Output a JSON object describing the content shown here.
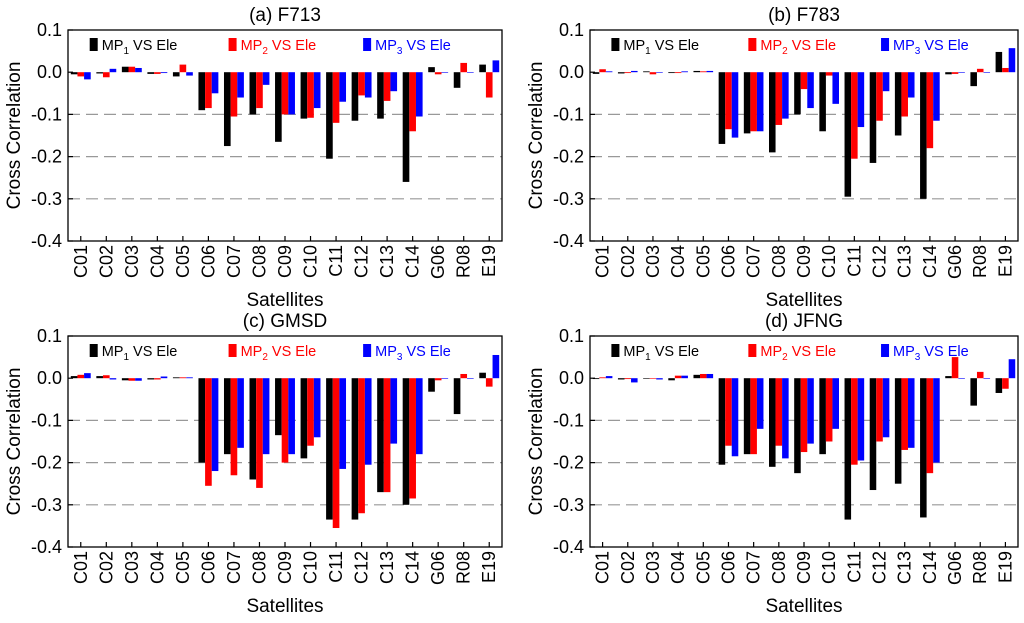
{
  "chart_data": [
    {
      "type": "bar",
      "title": "(a) F713",
      "xlabel": "Satellites",
      "ylabel": "Cross Correlation",
      "ylim": [
        -0.4,
        0.1
      ],
      "yticks": [
        "0.1",
        "0.0",
        "-0.1",
        "-0.2",
        "-0.3",
        "-0.4"
      ],
      "grid": "dashed at -0.1, -0.2, -0.3",
      "legend": "top",
      "categories": [
        "C01",
        "C02",
        "C03",
        "C04",
        "C05",
        "C06",
        "C07",
        "C08",
        "C09",
        "C10",
        "C11",
        "C12",
        "C13",
        "C14",
        "G06",
        "R08",
        "E19"
      ],
      "series": [
        {
          "name": "MP1 VS Ele",
          "label_main": "MP",
          "label_sub": "1",
          "label_rest": " VS Ele",
          "color": "#000000",
          "values": [
            -0.005,
            -0.003,
            0.013,
            -0.004,
            -0.01,
            -0.09,
            -0.175,
            -0.1,
            -0.165,
            -0.11,
            -0.205,
            -0.115,
            -0.11,
            -0.26,
            0.012,
            -0.037,
            0.018
          ]
        },
        {
          "name": "MP2 VS Ele",
          "label_main": "MP",
          "label_sub": "2",
          "label_rest": " VS Ele",
          "color": "#ff0000",
          "values": [
            -0.01,
            -0.012,
            0.013,
            -0.004,
            0.018,
            -0.085,
            -0.105,
            -0.085,
            -0.1,
            -0.108,
            -0.12,
            -0.055,
            -0.068,
            -0.14,
            -0.005,
            0.022,
            -0.06
          ]
        },
        {
          "name": "MP3 VS Ele",
          "label_main": "MP",
          "label_sub": "3",
          "label_rest": " VS Ele",
          "color": "#0000ff",
          "values": [
            -0.017,
            0.008,
            0.01,
            -0.002,
            -0.008,
            -0.05,
            -0.06,
            -0.03,
            -0.1,
            -0.085,
            -0.07,
            -0.06,
            -0.045,
            -0.105,
            0.0,
            0.0,
            0.028
          ]
        }
      ]
    },
    {
      "type": "bar",
      "title": "(b) F783",
      "xlabel": "Satellites",
      "ylabel": "Cross Correlation",
      "ylim": [
        -0.4,
        0.1
      ],
      "yticks": [
        "0.1",
        "0.0",
        "-0.1",
        "-0.2",
        "-0.3",
        "-0.4"
      ],
      "grid": "dashed at -0.1, -0.2, -0.3",
      "legend": "top",
      "categories": [
        "C01",
        "C02",
        "C03",
        "C04",
        "C05",
        "C06",
        "C07",
        "C08",
        "C09",
        "C10",
        "C11",
        "C12",
        "C13",
        "C14",
        "G06",
        "R08",
        "E19"
      ],
      "series": [
        {
          "name": "MP1 VS Ele",
          "label_main": "MP",
          "label_sub": "1",
          "label_rest": " VS Ele",
          "color": "#000000",
          "values": [
            -0.004,
            -0.003,
            0.002,
            -0.002,
            0.003,
            -0.17,
            -0.145,
            -0.19,
            -0.1,
            -0.14,
            -0.295,
            -0.215,
            -0.15,
            -0.3,
            -0.005,
            -0.033,
            0.048
          ]
        },
        {
          "name": "MP2 VS Ele",
          "label_main": "MP",
          "label_sub": "2",
          "label_rest": " VS Ele",
          "color": "#ff0000",
          "values": [
            0.007,
            -0.002,
            -0.005,
            -0.002,
            0.002,
            -0.135,
            -0.14,
            -0.125,
            -0.04,
            -0.008,
            -0.205,
            -0.115,
            -0.105,
            -0.18,
            -0.004,
            0.008,
            0.01
          ]
        },
        {
          "name": "MP3 VS Ele",
          "label_main": "MP",
          "label_sub": "3",
          "label_rest": " VS Ele",
          "color": "#0000ff",
          "values": [
            0.002,
            0.003,
            0.0,
            0.002,
            0.003,
            -0.155,
            -0.14,
            -0.11,
            -0.085,
            -0.075,
            -0.13,
            -0.045,
            -0.06,
            -0.115,
            0.0,
            0.0,
            0.057
          ]
        }
      ]
    },
    {
      "type": "bar",
      "title": "(c) GMSD",
      "xlabel": "Satellites",
      "ylabel": "Cross Correlation",
      "ylim": [
        -0.4,
        0.1
      ],
      "yticks": [
        "0.1",
        "0.0",
        "-0.1",
        "-0.2",
        "-0.3",
        "-0.4"
      ],
      "grid": "dashed at -0.1, -0.2, -0.3",
      "legend": "top",
      "categories": [
        "C01",
        "C02",
        "C03",
        "C04",
        "C05",
        "C06",
        "C07",
        "C08",
        "C09",
        "C10",
        "C11",
        "C12",
        "C13",
        "C14",
        "G06",
        "R08",
        "E19"
      ],
      "series": [
        {
          "name": "MP1 VS Ele",
          "label_main": "MP",
          "label_sub": "1",
          "label_rest": " VS Ele",
          "color": "#000000",
          "values": [
            0.005,
            0.005,
            -0.005,
            -0.003,
            0.002,
            -0.2,
            -0.18,
            -0.24,
            -0.135,
            -0.19,
            -0.335,
            -0.335,
            -0.27,
            -0.3,
            -0.032,
            -0.085,
            0.013
          ]
        },
        {
          "name": "MP2 VS Ele",
          "label_main": "MP",
          "label_sub": "2",
          "label_rest": " VS Ele",
          "color": "#ff0000",
          "values": [
            0.008,
            0.007,
            -0.006,
            -0.003,
            0.002,
            -0.255,
            -0.23,
            -0.26,
            -0.2,
            -0.16,
            -0.355,
            -0.32,
            -0.27,
            -0.285,
            -0.005,
            0.01,
            -0.02
          ]
        },
        {
          "name": "MP3 VS Ele",
          "label_main": "MP",
          "label_sub": "3",
          "label_rest": " VS Ele",
          "color": "#0000ff",
          "values": [
            0.012,
            -0.003,
            -0.006,
            0.004,
            0.002,
            -0.22,
            -0.165,
            -0.18,
            -0.18,
            -0.14,
            -0.215,
            -0.205,
            -0.155,
            -0.18,
            0.0,
            0.0,
            0.055
          ]
        }
      ]
    },
    {
      "type": "bar",
      "title": "(d) JFNG",
      "xlabel": "Satellites",
      "ylabel": "Cross Correlation",
      "ylim": [
        -0.4,
        0.1
      ],
      "yticks": [
        "0.1",
        "0.0",
        "-0.1",
        "-0.2",
        "-0.3",
        "-0.4"
      ],
      "grid": "dashed at -0.1, -0.2, -0.3",
      "legend": "top",
      "categories": [
        "C01",
        "C02",
        "C03",
        "C04",
        "C05",
        "C06",
        "C07",
        "C08",
        "C09",
        "C10",
        "C11",
        "C12",
        "C13",
        "C14",
        "G06",
        "R08",
        "E19"
      ],
      "series": [
        {
          "name": "MP1 VS Ele",
          "label_main": "MP",
          "label_sub": "1",
          "label_rest": " VS Ele",
          "color": "#000000",
          "values": [
            -0.002,
            -0.003,
            0.0,
            -0.005,
            0.008,
            -0.205,
            -0.18,
            -0.21,
            -0.225,
            -0.18,
            -0.335,
            -0.265,
            -0.25,
            -0.33,
            0.005,
            -0.065,
            -0.035
          ]
        },
        {
          "name": "MP2 VS Ele",
          "label_main": "MP",
          "label_sub": "2",
          "label_rest": " VS Ele",
          "color": "#ff0000",
          "values": [
            0.002,
            -0.002,
            0.0,
            0.006,
            0.01,
            -0.16,
            -0.18,
            -0.16,
            -0.175,
            -0.15,
            -0.205,
            -0.15,
            -0.17,
            -0.225,
            0.05,
            0.015,
            -0.025
          ]
        },
        {
          "name": "MP3 VS Ele",
          "label_main": "MP",
          "label_sub": "3",
          "label_rest": " VS Ele",
          "color": "#0000ff",
          "values": [
            0.005,
            -0.01,
            -0.003,
            0.006,
            0.01,
            -0.185,
            -0.12,
            -0.19,
            -0.155,
            -0.12,
            -0.195,
            -0.14,
            -0.165,
            -0.2,
            0.0,
            0.0,
            0.045
          ]
        }
      ]
    }
  ]
}
